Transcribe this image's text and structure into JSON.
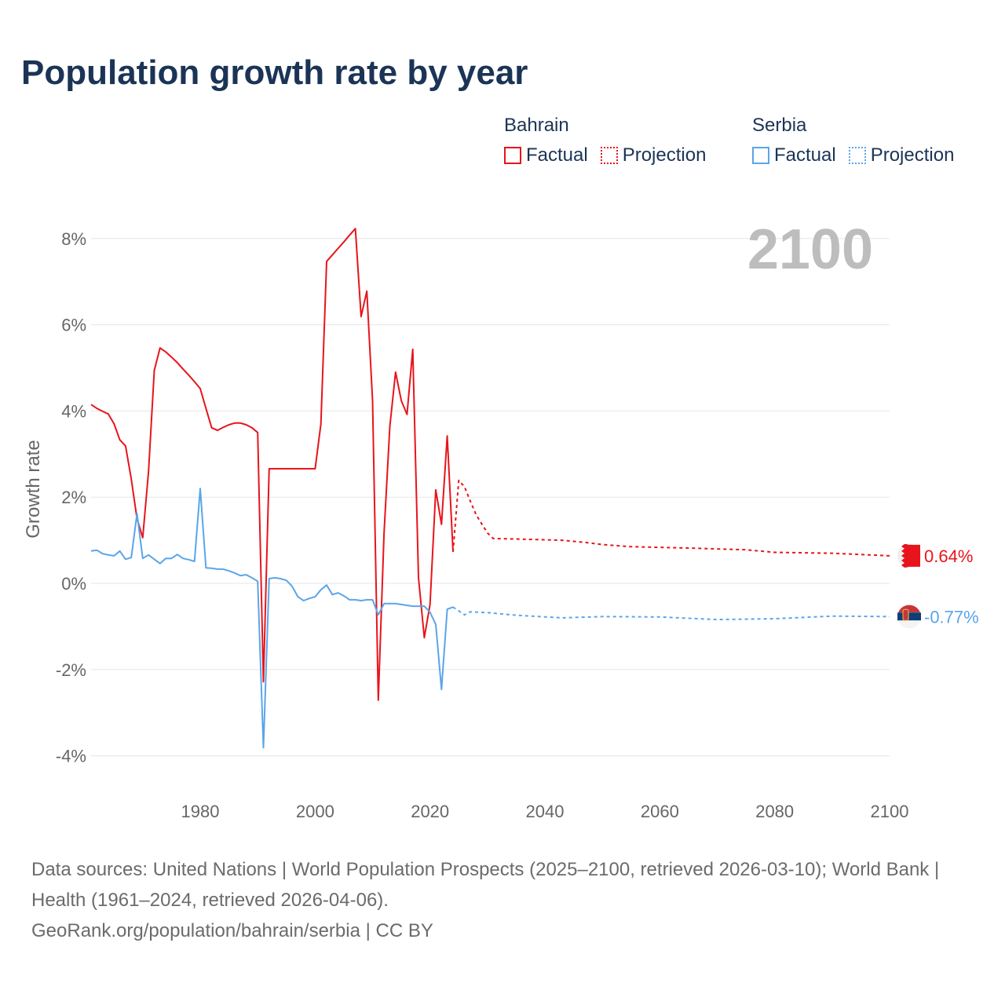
{
  "title": "Population growth rate by year",
  "legend": {
    "groups": [
      {
        "country": "Bahrain",
        "factual_label": "Factual",
        "projection_label": "Projection",
        "color": "#e8141b"
      },
      {
        "country": "Serbia",
        "factual_label": "Factual",
        "projection_label": "Projection",
        "color": "#5aa5ea"
      }
    ]
  },
  "year_display": "2100",
  "footer": {
    "sources": "Data sources: United Nations | World Population Prospects (2025–2100, retrieved 2026-03-10); World Bank | Health (1961–2024, retrieved 2026-04-06).",
    "credit": "GeoRank.org/population/bahrain/serbia | CC BY"
  },
  "chart_data": {
    "type": "line",
    "title": "Population growth rate by year",
    "xlabel": "",
    "ylabel": "Growth rate",
    "xlim": [
      1961,
      2100
    ],
    "ylim": [
      -4.5,
      8.5
    ],
    "xticks": [
      1980,
      2000,
      2020,
      2040,
      2060,
      2080,
      2100
    ],
    "yticks": [
      -4,
      -2,
      0,
      2,
      4,
      6,
      8
    ],
    "ytick_labels": [
      "-4%",
      "-2%",
      "0%",
      "2%",
      "4%",
      "6%",
      "8%"
    ],
    "grid": true,
    "legend_position": "top-right",
    "series": [
      {
        "name": "Bahrain Factual",
        "color": "#e8141b",
        "style": "solid",
        "x": [
          1961,
          1962,
          1963,
          1964,
          1965,
          1966,
          1967,
          1968,
          1969,
          1970,
          1971,
          1972,
          1973,
          1974,
          1975,
          1976,
          1977,
          1978,
          1979,
          1980,
          1981,
          1982,
          1983,
          1984,
          1985,
          1986,
          1987,
          1988,
          1989,
          1990,
          1991,
          1992,
          1993,
          1994,
          1995,
          1996,
          1997,
          1998,
          1999,
          2000,
          2001,
          2002,
          2003,
          2004,
          2005,
          2006,
          2007,
          2008,
          2009,
          2010,
          2011,
          2012,
          2013,
          2014,
          2015,
          2016,
          2017,
          2018,
          2019,
          2020,
          2021,
          2022,
          2023,
          2024
        ],
        "y": [
          4.15,
          4.06,
          3.99,
          3.93,
          3.7,
          3.33,
          3.19,
          2.42,
          1.5,
          1.06,
          2.6,
          4.94,
          5.46,
          5.37,
          5.25,
          5.12,
          4.97,
          4.83,
          4.68,
          4.52,
          4.06,
          3.61,
          3.55,
          3.62,
          3.68,
          3.72,
          3.72,
          3.68,
          3.61,
          3.5,
          -2.28,
          2.66,
          2.66,
          2.66,
          2.66,
          2.66,
          2.66,
          2.66,
          2.66,
          2.66,
          3.7,
          7.47,
          7.62,
          7.77,
          7.92,
          8.08,
          8.23,
          6.19,
          6.78,
          4.24,
          -2.71,
          1.15,
          3.64,
          4.9,
          4.24,
          3.92,
          5.43,
          0.13,
          -1.26,
          -0.49,
          2.17,
          1.37,
          3.42,
          0.73
        ]
      },
      {
        "name": "Bahrain Projection",
        "color": "#e8141b",
        "style": "dotted",
        "x": [
          2024,
          2025,
          2026,
          2027,
          2028,
          2029,
          2030,
          2031,
          2035,
          2043,
          2047,
          2050,
          2055,
          2065,
          2075,
          2080,
          2090,
          2100
        ],
        "y": [
          0.73,
          2.39,
          2.24,
          1.91,
          1.6,
          1.38,
          1.17,
          1.04,
          1.03,
          1.0,
          0.95,
          0.9,
          0.85,
          0.82,
          0.78,
          0.72,
          0.7,
          0.64
        ]
      },
      {
        "name": "Serbia Factual",
        "color": "#5aa5ea",
        "style": "solid",
        "x": [
          1961,
          1962,
          1963,
          1964,
          1965,
          1966,
          1967,
          1968,
          1969,
          1970,
          1971,
          1972,
          1973,
          1974,
          1975,
          1976,
          1977,
          1978,
          1979,
          1980,
          1981,
          1982,
          1983,
          1984,
          1985,
          1986,
          1987,
          1988,
          1989,
          1990,
          1991,
          1992,
          1993,
          1994,
          1995,
          1996,
          1997,
          1998,
          1999,
          2000,
          2001,
          2002,
          2003,
          2004,
          2005,
          2006,
          2007,
          2008,
          2009,
          2010,
          2011,
          2012,
          2013,
          2014,
          2015,
          2016,
          2017,
          2018,
          2019,
          2020,
          2021,
          2022,
          2023,
          2024
        ],
        "y": [
          0.75,
          0.77,
          0.69,
          0.66,
          0.64,
          0.75,
          0.56,
          0.6,
          1.62,
          0.58,
          0.66,
          0.56,
          0.46,
          0.58,
          0.58,
          0.67,
          0.58,
          0.55,
          0.51,
          2.2,
          0.36,
          0.35,
          0.33,
          0.33,
          0.29,
          0.24,
          0.18,
          0.2,
          0.13,
          0.05,
          -3.81,
          0.11,
          0.13,
          0.11,
          0.07,
          -0.07,
          -0.31,
          -0.4,
          -0.35,
          -0.31,
          -0.15,
          -0.04,
          -0.26,
          -0.22,
          -0.29,
          -0.38,
          -0.38,
          -0.4,
          -0.38,
          -0.38,
          -0.73,
          -0.47,
          -0.47,
          -0.47,
          -0.49,
          -0.51,
          -0.53,
          -0.53,
          -0.53,
          -0.67,
          -0.95,
          -2.46,
          -0.6,
          -0.55
        ]
      },
      {
        "name": "Serbia Projection",
        "color": "#5aa5ea",
        "style": "dotted",
        "x": [
          2024,
          2025,
          2026,
          2027,
          2030,
          2035,
          2043,
          2050,
          2060,
          2070,
          2080,
          2090,
          2100
        ],
        "y": [
          -0.55,
          -0.64,
          -0.73,
          -0.66,
          -0.68,
          -0.74,
          -0.8,
          -0.77,
          -0.78,
          -0.84,
          -0.82,
          -0.76,
          -0.77
        ]
      }
    ],
    "end_labels": [
      {
        "country": "Bahrain",
        "text": "0.64%",
        "color": "#e8141b"
      },
      {
        "country": "Serbia",
        "text": "-0.77%",
        "color": "#5aa5ea"
      }
    ]
  }
}
